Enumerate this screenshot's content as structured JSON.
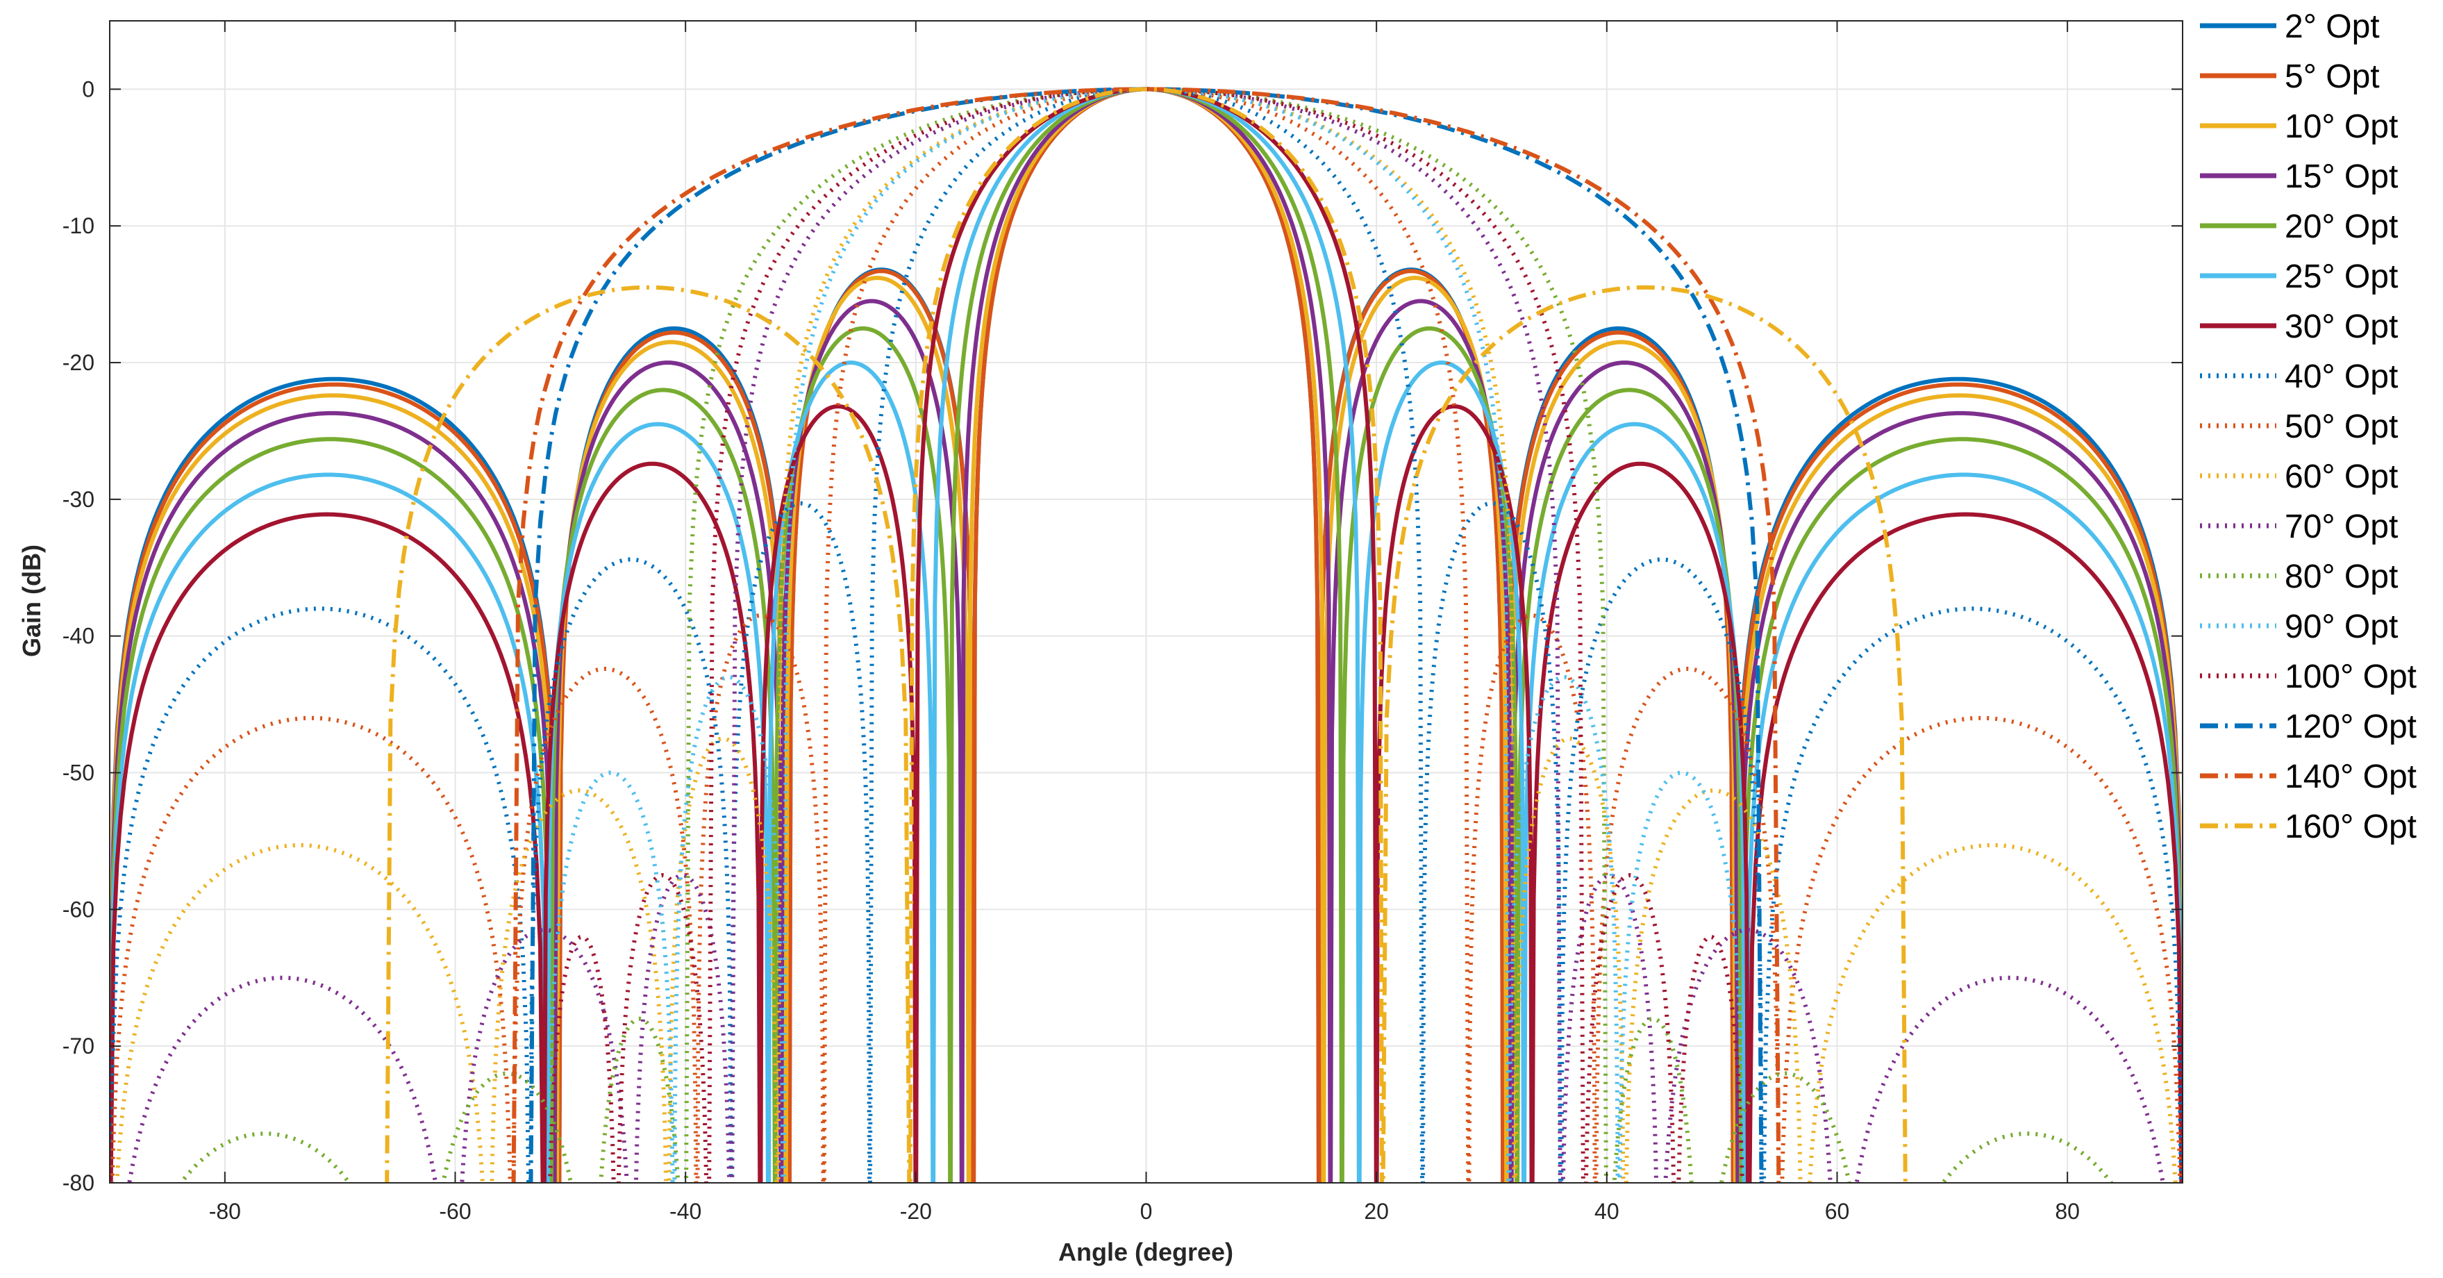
{
  "chart_data": {
    "type": "line",
    "xlabel": "Angle (degree)",
    "ylabel": "Gain (dB)",
    "xlim": [
      -90,
      90
    ],
    "ylim": [
      -80,
      5
    ],
    "xticks": [
      -80,
      -60,
      -40,
      -20,
      0,
      20,
      40,
      60,
      80
    ],
    "xtick_labels": [
      "-80",
      "-60",
      "-40",
      "-20",
      "0",
      "20",
      "40",
      "60",
      "80"
    ],
    "yticks": [
      0,
      -10,
      -20,
      -30,
      -40,
      -50,
      -60,
      -70,
      -80
    ],
    "ytick_labels": [
      "0",
      "-10",
      "-20",
      "-30",
      "-40",
      "-50",
      "-60",
      "-70",
      "-80"
    ],
    "grid": true,
    "legend_position": "outside-right",
    "series": [
      {
        "name": "2° Opt",
        "color": "#0072BD",
        "dash": "solid",
        "peak": 0,
        "main_null": 15.0,
        "lobe_nulls": [
          31.0,
          51.0,
          90.0
        ],
        "lobe_peaks": [
          -13.2,
          -17.5,
          -21.2
        ]
      },
      {
        "name": "5° Opt",
        "color": "#D95319",
        "dash": "solid",
        "peak": 0,
        "main_null": 15.0,
        "lobe_nulls": [
          31.0,
          51.0,
          90.0
        ],
        "lobe_peaks": [
          -13.3,
          -17.8,
          -21.6
        ]
      },
      {
        "name": "10° Opt",
        "color": "#EDB120",
        "dash": "solid",
        "peak": 0,
        "main_null": 15.4,
        "lobe_nulls": [
          31.3,
          51.2,
          90.0
        ],
        "lobe_peaks": [
          -13.8,
          -18.5,
          -22.4
        ]
      },
      {
        "name": "15° Opt",
        "color": "#7E2F8E",
        "dash": "solid",
        "peak": 0,
        "main_null": 16.0,
        "lobe_nulls": [
          31.7,
          51.4,
          90.0
        ],
        "lobe_peaks": [
          -15.5,
          -20.0,
          -23.7
        ]
      },
      {
        "name": "20° Opt",
        "color": "#77AC30",
        "dash": "solid",
        "peak": 0,
        "main_null": 17.0,
        "lobe_nulls": [
          32.2,
          51.7,
          90.0
        ],
        "lobe_peaks": [
          -17.5,
          -22.0,
          -25.6
        ]
      },
      {
        "name": "25° Opt",
        "color": "#4DBEEE",
        "dash": "solid",
        "peak": 0,
        "main_null": 18.5,
        "lobe_nulls": [
          32.8,
          52.0,
          90.0
        ],
        "lobe_peaks": [
          -20.0,
          -24.5,
          -28.2
        ]
      },
      {
        "name": "30° Opt",
        "color": "#A2142F",
        "dash": "solid",
        "peak": 0,
        "main_null": 20.0,
        "lobe_nulls": [
          33.5,
          52.3,
          90.0
        ],
        "lobe_peaks": [
          -23.2,
          -27.4,
          -31.1
        ]
      },
      {
        "name": "40° Opt",
        "color": "#0072BD",
        "dash": "dotted",
        "peak": 0,
        "main_null": 24.0,
        "lobe_nulls": [
          36.0,
          53.5,
          90.0
        ],
        "lobe_peaks": [
          -30.3,
          -34.4,
          -38.0
        ]
      },
      {
        "name": "50° Opt",
        "color": "#D95319",
        "dash": "dotted",
        "peak": 0,
        "main_null": 28.0,
        "lobe_nulls": [
          39.0,
          55.0,
          90.0
        ],
        "lobe_peaks": [
          -38.5,
          -42.4,
          -46.0
        ]
      },
      {
        "name": "60° Opt",
        "color": "#EDB120",
        "dash": "dotted",
        "peak": 0,
        "main_null": 32.0,
        "lobe_nulls": [
          41.5,
          57.0,
          90.0
        ],
        "lobe_peaks": [
          -47.5,
          -51.3,
          -55.3
        ]
      },
      {
        "name": "70° Opt",
        "color": "#7E2F8E",
        "dash": "dotted",
        "peak": 0,
        "main_null": 36.0,
        "lobe_nulls": [
          44.5,
          60.0,
          90.0
        ],
        "lobe_peaks": [
          -57.5,
          -61.5,
          -65.0
        ]
      },
      {
        "name": "80° Opt",
        "color": "#77AC30",
        "dash": "dotted",
        "peak": 0,
        "main_null": 40.0,
        "lobe_nulls": [
          48.0,
          63.0,
          90.0
        ],
        "lobe_peaks": [
          -68.0,
          -72.0,
          -76.4
        ]
      },
      {
        "name": "90° Opt",
        "color": "#4DBEEE",
        "dash": "dotted",
        "peak": 0,
        "main_null": 31.5,
        "lobe_nulls": [
          41.0,
          52.0
        ],
        "lobe_peaks": [
          -43.0,
          -50.0
        ]
      },
      {
        "name": "100° Opt",
        "color": "#A2142F",
        "dash": "dotted",
        "peak": 0,
        "main_null": 38.0,
        "lobe_nulls": [
          46.0,
          52.0
        ],
        "lobe_peaks": [
          -57.5,
          -62.0
        ]
      },
      {
        "name": "120° Opt",
        "color": "#0072BD",
        "dash": "dashdot",
        "peak": 0,
        "main_null": 53.5,
        "lobe_nulls": [],
        "lobe_peaks": []
      },
      {
        "name": "140° Opt",
        "color": "#D95319",
        "dash": "dashdot",
        "peak": 0,
        "main_null": 55.0,
        "lobe_nulls": [],
        "lobe_peaks": []
      },
      {
        "name": "160° Opt",
        "color": "#EDB120",
        "dash": "dashdot",
        "peak": 0,
        "main_null": 20.5,
        "lobe_nulls": [
          66.0
        ],
        "lobe_peaks": [
          -14.5
        ]
      }
    ]
  }
}
